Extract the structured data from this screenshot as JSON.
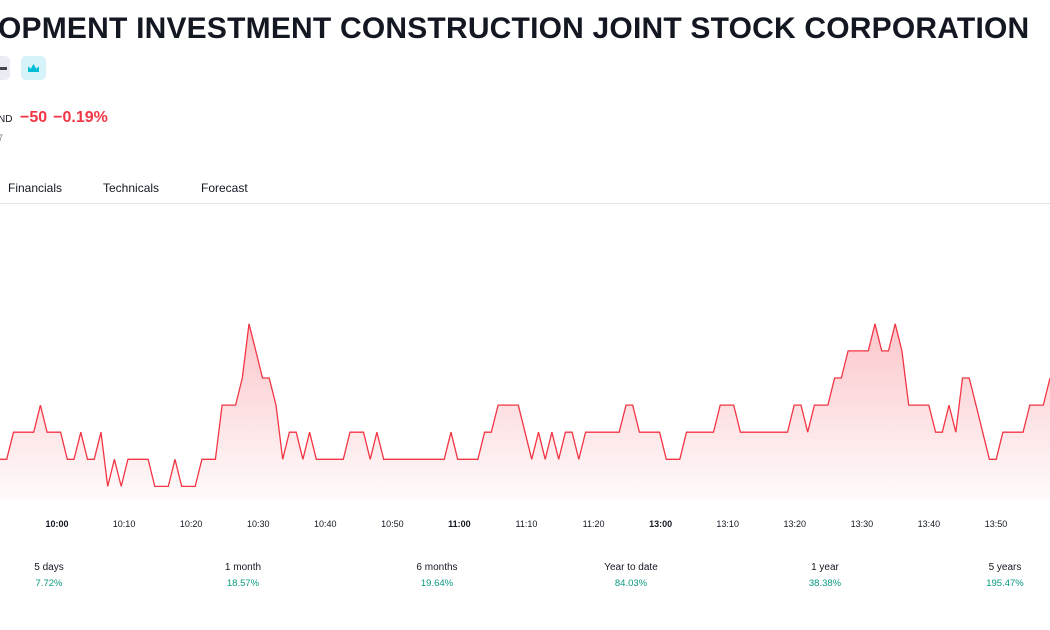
{
  "header": {
    "title": "OPMENT INVESTMENT CONSTRUCTION JOINT STOCK CORPORATION",
    "currency": "ND",
    "change": "−50",
    "change_percent": "−0.19%",
    "subline": "7"
  },
  "tabs": [
    "Financials",
    "Technicals",
    "Forecast"
  ],
  "chart_data": {
    "type": "line",
    "color": "#f23645",
    "time_labels": [
      "10:00",
      "10:10",
      "10:20",
      "10:30",
      "10:40",
      "10:50",
      "11:00",
      "11:10",
      "11:20",
      "13:00",
      "13:10",
      "13:20",
      "13:30",
      "13:40",
      "13:50"
    ],
    "ylim": [
      -1.5,
      9.2
    ],
    "values": [
      0,
      0,
      1,
      1,
      1,
      1,
      2,
      1,
      1,
      1,
      0,
      0,
      1,
      0,
      0,
      1,
      -1,
      0,
      -1,
      0,
      0,
      0,
      0,
      -1,
      -1,
      -1,
      0,
      -1,
      -1,
      -1,
      0,
      0,
      0,
      2,
      2,
      2,
      3,
      5,
      4,
      3,
      3,
      2,
      0,
      1,
      1,
      0,
      1,
      0,
      0,
      0,
      0,
      0,
      1,
      1,
      1,
      0,
      1,
      0,
      0,
      0,
      0,
      0,
      0,
      0,
      0,
      0,
      0,
      1,
      0,
      0,
      0,
      0,
      1,
      1,
      2,
      2,
      2,
      2,
      1,
      0,
      1,
      0,
      1,
      0,
      1,
      1,
      0,
      1,
      1,
      1,
      1,
      1,
      1,
      2,
      2,
      1,
      1,
      1,
      1,
      0,
      0,
      0,
      1,
      1,
      1,
      1,
      1,
      2,
      2,
      2,
      1,
      1,
      1,
      1,
      1,
      1,
      1,
      1,
      2,
      2,
      1,
      2,
      2,
      2,
      3,
      3,
      4,
      4,
      4,
      4,
      5,
      4,
      4,
      5,
      4,
      2,
      2,
      2,
      2,
      1,
      1,
      2,
      1,
      3,
      3,
      2,
      1,
      0,
      0,
      1,
      1,
      1,
      1,
      2,
      2,
      2,
      3
    ]
  },
  "performance": [
    {
      "label": "5 days",
      "value": "7.72%"
    },
    {
      "label": "1 month",
      "value": "18.57%"
    },
    {
      "label": "6 months",
      "value": "19.64%"
    },
    {
      "label": "Year to date",
      "value": "84.03%"
    },
    {
      "label": "1 year",
      "value": "38.38%"
    },
    {
      "label": "5 years",
      "value": "195.47%"
    }
  ]
}
